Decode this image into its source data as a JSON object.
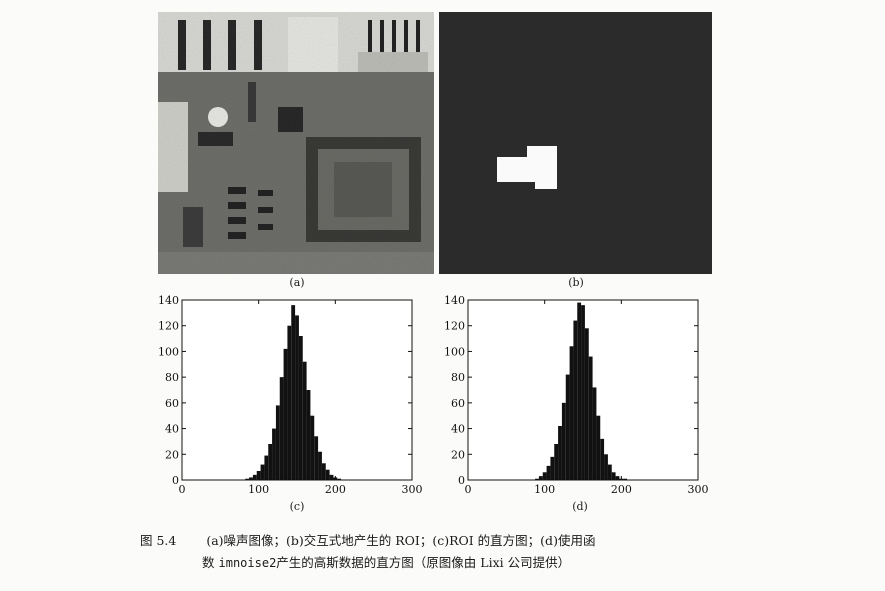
{
  "figure": {
    "panels": [
      {
        "id": "a",
        "label": "(a)"
      },
      {
        "id": "b",
        "label": "(b)"
      },
      {
        "id": "c",
        "label": "(c)"
      },
      {
        "id": "d",
        "label": "(d)"
      }
    ],
    "caption": {
      "number": "图 5.4",
      "line1": "(a)噪声图像；(b)交互式地产生的 ROI；(c)ROI 的直方图；(d)使用函",
      "line2_prefix": "数",
      "line2_code": "imnoise2",
      "line2_suffix": "产生的高斯数据的直方图（原图像由 Lixi 公司提供）"
    }
  },
  "chart_data": [
    {
      "type": "bar",
      "title": "",
      "xlabel": "",
      "ylabel": "",
      "xlim": [
        0,
        300
      ],
      "ylim": [
        0,
        140
      ],
      "xticks": [
        0,
        100,
        200,
        300
      ],
      "yticks": [
        0,
        20,
        40,
        60,
        80,
        100,
        120,
        140
      ],
      "x": [
        85,
        90,
        95,
        100,
        105,
        110,
        115,
        120,
        125,
        130,
        135,
        140,
        145,
        150,
        155,
        160,
        165,
        170,
        175,
        180,
        185,
        190,
        195,
        200,
        205,
        210
      ],
      "values": [
        1,
        2,
        4,
        7,
        12,
        19,
        28,
        40,
        58,
        80,
        102,
        120,
        136,
        128,
        112,
        92,
        70,
        50,
        34,
        22,
        13,
        8,
        4,
        2,
        1,
        0
      ],
      "grid": false
    },
    {
      "type": "bar",
      "title": "",
      "xlabel": "",
      "ylabel": "",
      "xlim": [
        0,
        300
      ],
      "ylim": [
        0,
        140
      ],
      "xticks": [
        0,
        100,
        200,
        300
      ],
      "yticks": [
        0,
        20,
        40,
        60,
        80,
        100,
        120,
        140
      ],
      "x": [
        85,
        90,
        95,
        100,
        105,
        110,
        115,
        120,
        125,
        130,
        135,
        140,
        145,
        150,
        155,
        160,
        165,
        170,
        175,
        180,
        185,
        190,
        195,
        200,
        205,
        210
      ],
      "values": [
        0,
        1,
        3,
        6,
        11,
        18,
        28,
        42,
        60,
        82,
        104,
        124,
        138,
        136,
        118,
        96,
        72,
        50,
        32,
        20,
        12,
        6,
        3,
        1,
        1,
        0
      ],
      "grid": false
    }
  ]
}
